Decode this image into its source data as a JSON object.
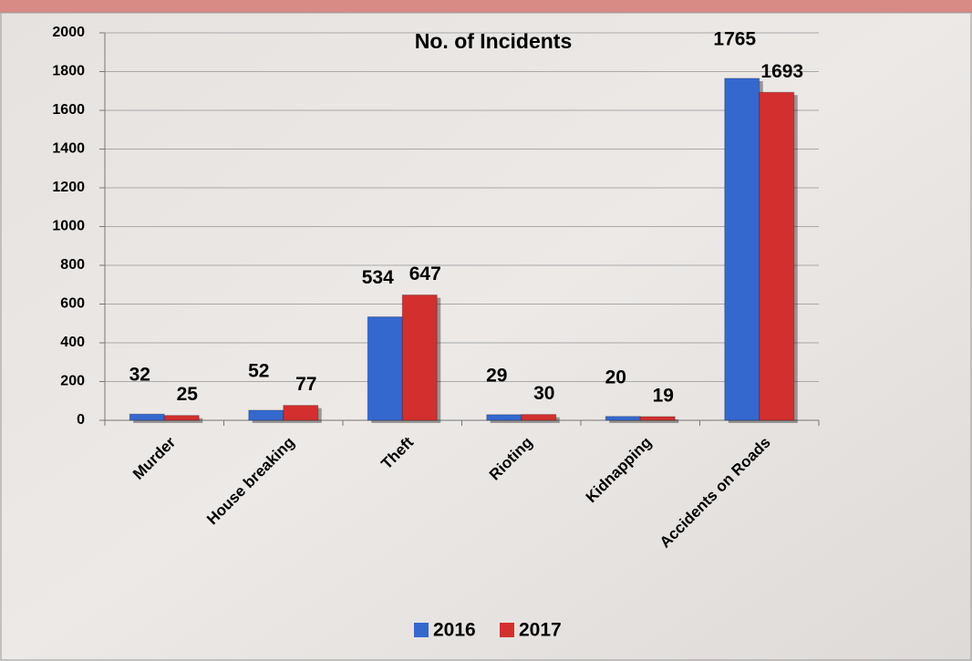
{
  "chart_data": {
    "type": "bar",
    "title": "No. of Incidents",
    "categories": [
      "Murder",
      "House breaking",
      "Theft",
      "Rioting",
      "Kidnapping",
      "Accidents on Roads"
    ],
    "series": [
      {
        "name": "2016",
        "color": "#3568cf",
        "values": [
          32,
          52,
          534,
          29,
          20,
          1765
        ]
      },
      {
        "name": "2017",
        "color": "#d32f2f",
        "values": [
          25,
          77,
          647,
          30,
          19,
          1693
        ]
      }
    ],
    "ylim": [
      0,
      2000
    ],
    "yticks": [
      0,
      200,
      400,
      600,
      800,
      1000,
      1200,
      1400,
      1600,
      1800,
      2000
    ],
    "grid": true,
    "legend": "bottom"
  }
}
